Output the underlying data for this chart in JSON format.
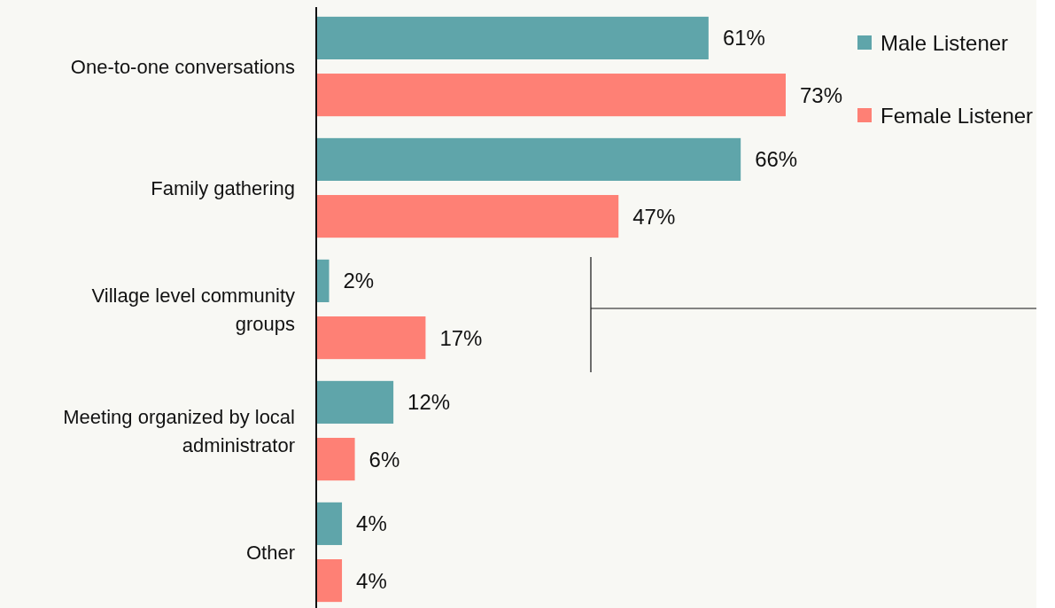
{
  "chart_data": {
    "type": "bar",
    "orientation": "horizontal",
    "categories": [
      "One-to-one conversations",
      "Family gathering",
      "Village level community groups",
      "Meeting organized by local administrator",
      "Other"
    ],
    "series": [
      {
        "name": "Male Listener",
        "color": "#5fa5aa",
        "values": [
          61,
          66,
          2,
          12,
          4
        ],
        "value_labels": [
          "61%",
          "66%",
          "2%",
          "12%",
          "4%"
        ]
      },
      {
        "name": "Female Listener",
        "color": "#fe8075",
        "values": [
          73,
          47,
          17,
          6,
          4
        ],
        "value_labels": [
          "73%",
          "47%",
          "17%",
          "6%",
          "4%"
        ]
      }
    ],
    "legend": "top right",
    "tick_labels": "y"
  }
}
